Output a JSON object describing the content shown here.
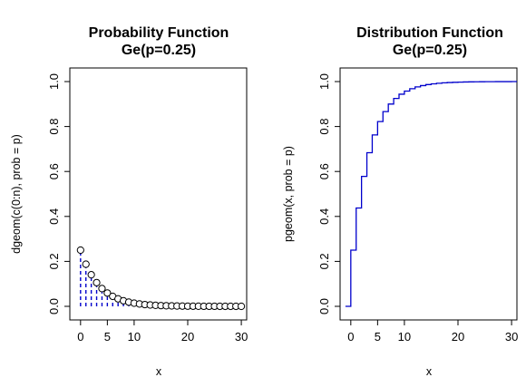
{
  "chart_data": [
    {
      "type": "scatter",
      "title": "Probability Function",
      "subtitle": "Ge(p=0.25)",
      "xlabel": "x",
      "ylabel": "dgeom(c(0:n), prob = p)",
      "xlim": [
        -2,
        31
      ],
      "ylim": [
        0,
        1.0
      ],
      "xticks": [
        0,
        5,
        10,
        20,
        30
      ],
      "yticks": [
        0.0,
        0.2,
        0.4,
        0.6,
        0.8,
        1.0
      ],
      "ytick_labels": [
        "0.0",
        "0.2",
        "0.4",
        "0.6",
        "0.8",
        "1.0"
      ],
      "vertical_lines": true,
      "line_color": "#0000cc",
      "point_color": "#000000",
      "x": [
        0,
        1,
        2,
        3,
        4,
        5,
        6,
        7,
        8,
        9,
        10,
        11,
        12,
        13,
        14,
        15,
        16,
        17,
        18,
        19,
        20,
        21,
        22,
        23,
        24,
        25,
        26,
        27,
        28,
        29,
        30
      ],
      "y": [
        0.25,
        0.1875,
        0.1406,
        0.1055,
        0.0791,
        0.0593,
        0.0445,
        0.0334,
        0.025,
        0.0188,
        0.0141,
        0.0106,
        0.0079,
        0.0059,
        0.0045,
        0.0033,
        0.0025,
        0.0019,
        0.0014,
        0.0011,
        0.0008,
        0.0006,
        0.0005,
        0.0003,
        0.0003,
        0.0002,
        0.0001,
        0.0001,
        0.0001,
        0.0001,
        0.0
      ]
    },
    {
      "type": "line",
      "step": true,
      "title": "Distribution Function",
      "subtitle": "Ge(p=0.25)",
      "xlabel": "x",
      "ylabel": "pgeom(x, prob = p)",
      "xlim": [
        -2,
        31
      ],
      "ylim": [
        0,
        1.0
      ],
      "xticks": [
        0,
        5,
        10,
        20,
        30
      ],
      "yticks": [
        0.0,
        0.2,
        0.4,
        0.6,
        0.8,
        1.0
      ],
      "ytick_labels": [
        "0.0",
        "0.2",
        "0.4",
        "0.6",
        "0.8",
        "1.0"
      ],
      "line_color": "#0000cc",
      "x": [
        -1,
        0,
        1,
        2,
        3,
        4,
        5,
        6,
        7,
        8,
        9,
        10,
        11,
        12,
        13,
        14,
        15,
        16,
        17,
        18,
        19,
        20,
        21,
        22,
        23,
        24,
        25,
        26,
        27,
        28,
        29,
        30,
        31
      ],
      "y": [
        0,
        0.25,
        0.4375,
        0.5781,
        0.6836,
        0.7627,
        0.822,
        0.8665,
        0.8999,
        0.9249,
        0.9437,
        0.9578,
        0.9683,
        0.9762,
        0.9822,
        0.9866,
        0.99,
        0.9925,
        0.9944,
        0.9958,
        0.9968,
        0.9976,
        0.9982,
        0.9987,
        0.999,
        0.9992,
        0.9994,
        0.9996,
        0.9997,
        0.9998,
        0.9998,
        0.9999,
        0.9999
      ]
    }
  ]
}
